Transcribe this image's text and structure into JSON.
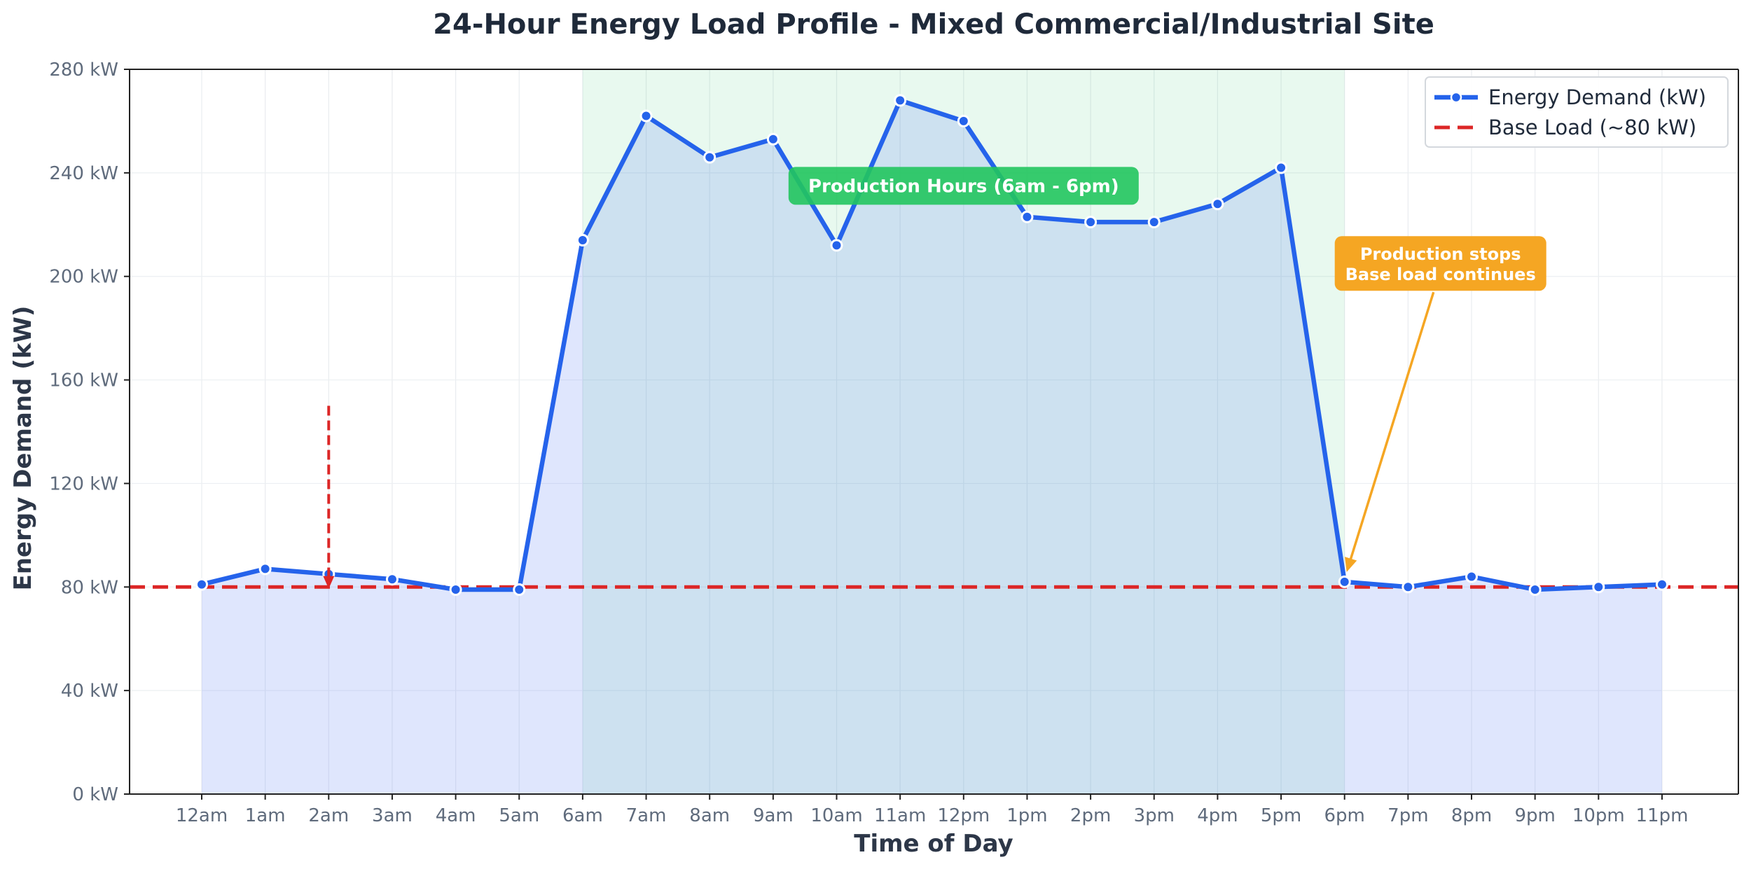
{
  "chart_data": {
    "type": "line",
    "title": "24-Hour Energy Load Profile - Mixed Commercial/Industrial Site",
    "xlabel": "Time of Day",
    "ylabel": "Energy Demand (kW)",
    "ylim": [
      0,
      280
    ],
    "y_ticks": [
      "0 kW",
      "40 kW",
      "80 kW",
      "120 kW",
      "160 kW",
      "200 kW",
      "240 kW",
      "280 kW"
    ],
    "y_tick_values": [
      0,
      40,
      80,
      120,
      160,
      200,
      240,
      280
    ],
    "categories": [
      "12am",
      "1am",
      "2am",
      "3am",
      "4am",
      "5am",
      "6am",
      "7am",
      "8am",
      "9am",
      "10am",
      "11am",
      "12pm",
      "1pm",
      "2pm",
      "3pm",
      "4pm",
      "5pm",
      "6pm",
      "7pm",
      "8pm",
      "9pm",
      "10pm",
      "11pm"
    ],
    "grid": true,
    "legend_position": "top-right",
    "series": [
      {
        "name": "Energy Demand (kW)",
        "color": "#2563eb",
        "style": "solid-with-markers",
        "fill": "area",
        "values": [
          81,
          87,
          85,
          83,
          79,
          79,
          214,
          262,
          246,
          253,
          212,
          268,
          260,
          223,
          221,
          221,
          228,
          242,
          82,
          80,
          84,
          79,
          80,
          81
        ]
      },
      {
        "name": "Base Load (~80 kW)",
        "color": "#dc2626",
        "style": "dashed",
        "value": 80
      }
    ],
    "shaded_region": {
      "from": "6am",
      "to": "6pm",
      "color": "#22c55e",
      "label": "Production Hours (6am - 6pm)"
    },
    "annotations": [
      {
        "kind": "label-arrow",
        "text_lines": [
          "Production stops",
          "Base load continues"
        ],
        "color": "#f5a623",
        "box_at": {
          "x": "6pm",
          "y": 205
        },
        "arrow_to": {
          "x": "6pm",
          "y": 82
        }
      },
      {
        "kind": "arrow",
        "color": "#dc2626",
        "from": {
          "x": "2am",
          "y": 150
        },
        "to": {
          "x": "2am",
          "y": 81
        }
      }
    ]
  }
}
